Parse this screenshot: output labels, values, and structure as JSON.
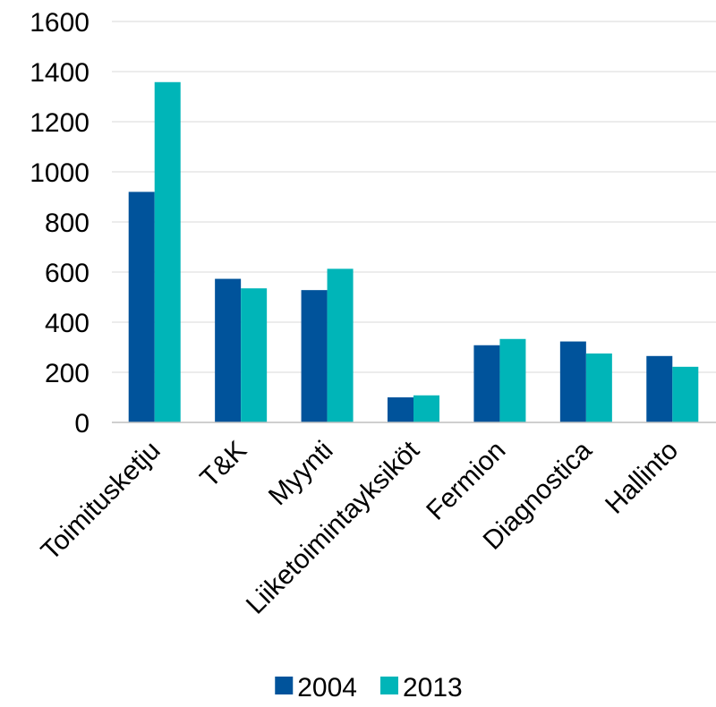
{
  "chart_data": {
    "type": "bar",
    "categories": [
      "Toimitusketju",
      "T&K",
      "Myynti",
      "Liiketoimintayksiköt",
      "Fermion",
      "Diagnostica",
      "Hallinto"
    ],
    "series": [
      {
        "name": "2004",
        "color": "#00539b",
        "values": [
          920,
          573,
          528,
          100,
          308,
          323,
          265
        ]
      },
      {
        "name": "2013",
        "color": "#00b5b8",
        "values": [
          1358,
          535,
          613,
          108,
          333,
          275,
          222
        ]
      }
    ],
    "ylim": [
      0,
      1600
    ],
    "yticks": [
      0,
      200,
      400,
      600,
      800,
      1000,
      1200,
      1400,
      1600
    ],
    "xlabel": "",
    "ylabel": "",
    "grid": true,
    "legend_position": "bottom"
  }
}
